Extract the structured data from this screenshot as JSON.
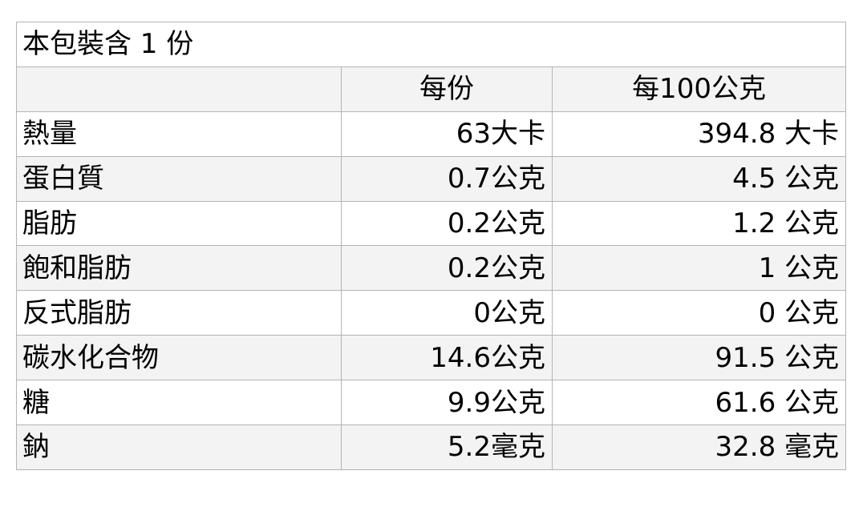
{
  "title": "本包裝含 1 份",
  "headers": [
    "",
    "每份",
    "每100公克"
  ],
  "rows": [
    {
      "label": "熱量",
      "per_serving": "63大卡",
      "per_100g": "394.8 大卡"
    },
    {
      "label": "蛋白質",
      "per_serving": "0.7公克",
      "per_100g": "4.5 公克"
    },
    {
      "label": "脂肪",
      "per_serving": "0.2公克",
      "per_100g": "1.2 公克"
    },
    {
      "label": "飽和脂肪",
      "per_serving": "0.2公克",
      "per_100g": "1 公克"
    },
    {
      "label": "反式脂肪",
      "per_serving": "0公克",
      "per_100g": "0 公克"
    },
    {
      "label": "碳水化合物",
      "per_serving": "14.6公克",
      "per_100g": "91.5 公克"
    },
    {
      "label": "糖",
      "per_serving": "9.9公克",
      "per_100g": "61.6 公克"
    },
    {
      "label": "鈉",
      "per_serving": "5.2毫克",
      "per_100g": "32.8 毫克"
    }
  ]
}
